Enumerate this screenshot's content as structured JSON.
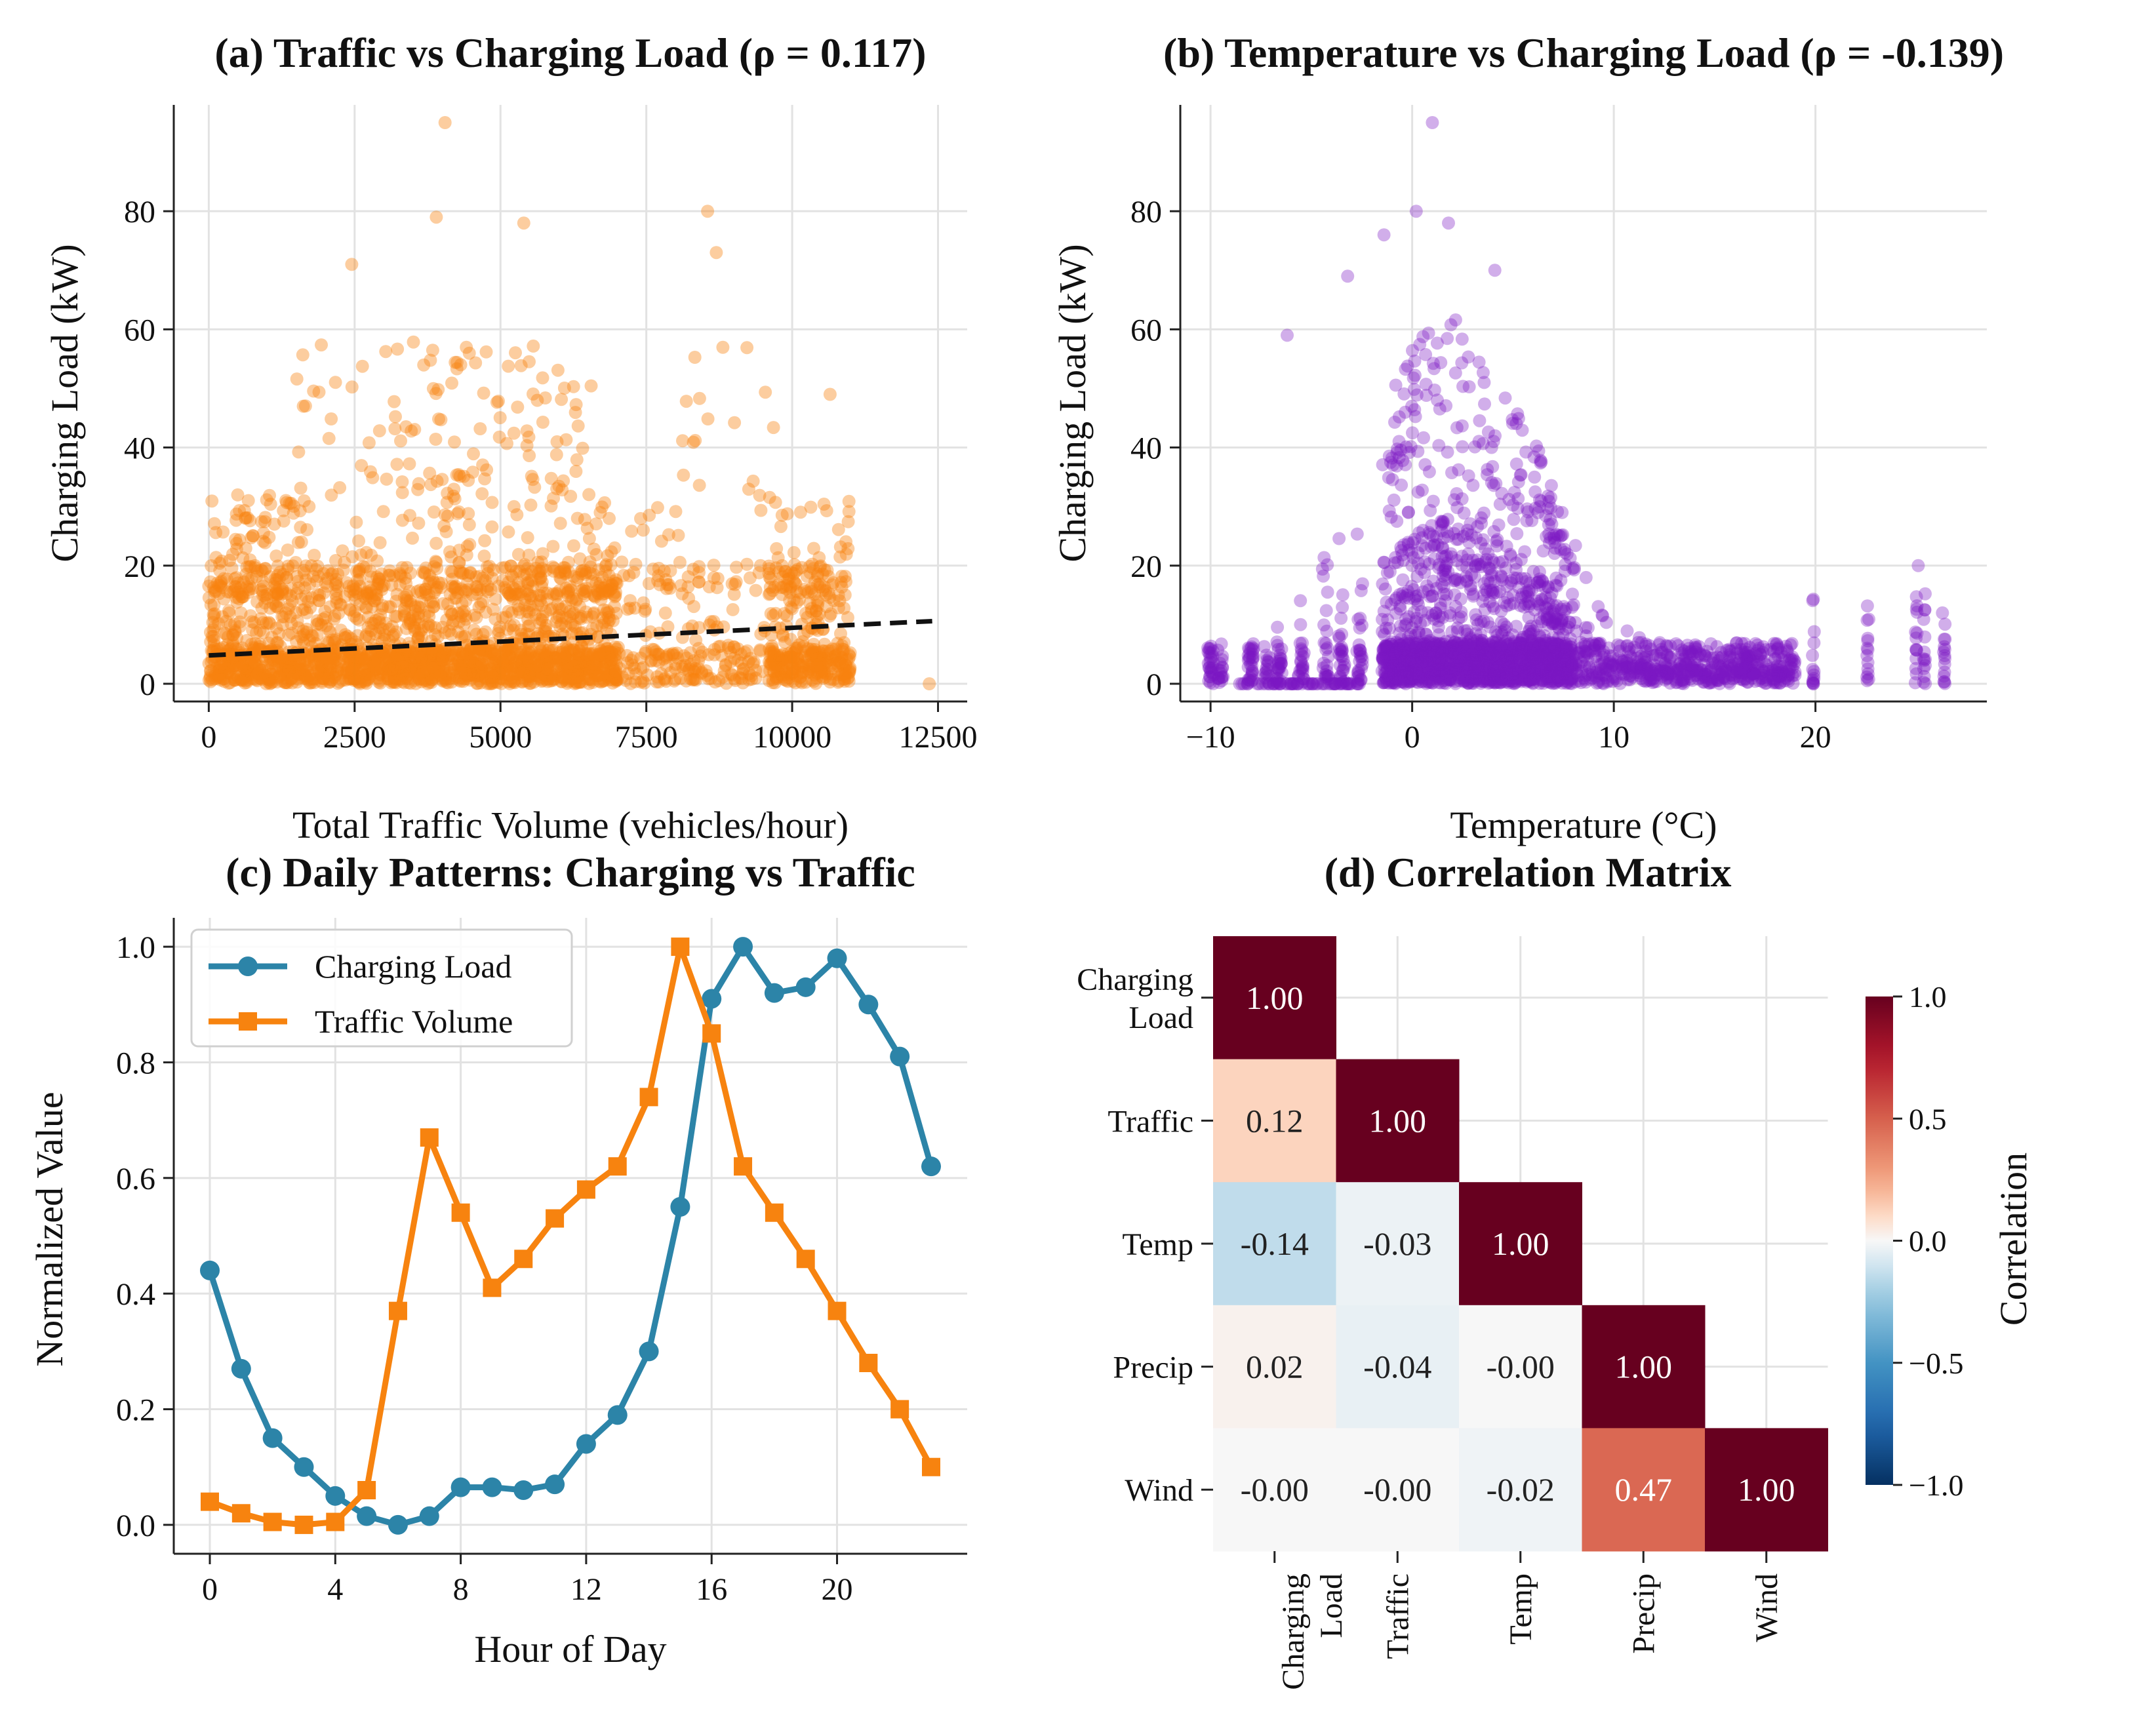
{
  "colors": {
    "orange": "#f7830f",
    "purple": "#7b16c3",
    "blue": "#2c84a8",
    "heat_pos": "#67001f",
    "heat_neg": "#053061"
  },
  "charts": {
    "a": {
      "type": "scatter",
      "title": "(a) Traffic vs Charging Load (ρ = 0.117)",
      "xlabel": "Total Traffic Volume (vehicles/hour)",
      "ylabel": "Charging Load (kW)",
      "xlim": [
        -600,
        13000
      ],
      "ylim": [
        -3,
        98
      ],
      "xticks": [
        0,
        2500,
        5000,
        7500,
        10000,
        12500
      ],
      "xtick_labels": [
        "0",
        "2500",
        "5000",
        "7500",
        "10000",
        "12500"
      ],
      "yticks": [
        0,
        20,
        40,
        60,
        80
      ],
      "ytick_labels": [
        "0",
        "20",
        "40",
        "60",
        "80"
      ],
      "trend_line": {
        "x": [
          0,
          12400
        ],
        "y": [
          4.8,
          10.6
        ]
      },
      "outliers": [
        [
          4050,
          95
        ],
        [
          8550,
          80
        ],
        [
          8700,
          73
        ],
        [
          5400,
          78
        ],
        [
          3900,
          79
        ],
        [
          2450,
          71
        ],
        [
          12350,
          0
        ],
        [
          10650,
          49
        ]
      ]
    },
    "b": {
      "type": "scatter",
      "title": "(b) Temperature vs Charging Load (ρ = -0.139)",
      "xlabel": "Temperature (°C)",
      "ylabel": "Charging Load (kW)",
      "xlim": [
        -11.5,
        28.5
      ],
      "ylim": [
        -3,
        98
      ],
      "xticks": [
        -10,
        0,
        10,
        20
      ],
      "xtick_labels": [
        "−10",
        "0",
        "10",
        "20"
      ],
      "yticks": [
        0,
        20,
        40,
        60,
        80
      ],
      "ytick_labels": [
        "0",
        "20",
        "40",
        "60",
        "80"
      ],
      "outliers": [
        [
          1.0,
          95
        ],
        [
          0.2,
          80
        ],
        [
          1.8,
          78
        ],
        [
          -1.4,
          76
        ],
        [
          -3.2,
          69
        ],
        [
          4.1,
          70
        ],
        [
          -6.2,
          59
        ],
        [
          25.1,
          20
        ],
        [
          26.3,
          12
        ]
      ]
    },
    "c": {
      "type": "line",
      "title": "(c) Daily Patterns: Charging vs Traffic",
      "xlabel": "Hour of Day",
      "ylabel": "Normalized Value",
      "xlim": [
        -1.15,
        24.15
      ],
      "ylim": [
        -0.05,
        1.05
      ],
      "xticks": [
        0,
        4,
        8,
        12,
        16,
        20
      ],
      "xtick_labels": [
        "0",
        "4",
        "8",
        "12",
        "16",
        "20"
      ],
      "yticks": [
        0.0,
        0.2,
        0.4,
        0.6,
        0.8,
        1.0
      ],
      "ytick_labels": [
        "0.0",
        "0.2",
        "0.4",
        "0.6",
        "0.8",
        "1.0"
      ],
      "x": [
        0,
        1,
        2,
        3,
        4,
        5,
        6,
        7,
        8,
        9,
        10,
        11,
        12,
        13,
        14,
        15,
        16,
        17,
        18,
        19,
        20,
        21,
        22,
        23
      ],
      "series": [
        {
          "name": "Charging Load",
          "marker": "circle",
          "values": [
            0.44,
            0.27,
            0.15,
            0.1,
            0.05,
            0.015,
            0.0,
            0.015,
            0.065,
            0.065,
            0.06,
            0.07,
            0.14,
            0.19,
            0.3,
            0.55,
            0.91,
            1.0,
            0.92,
            0.93,
            0.98,
            0.9,
            0.81,
            0.62
          ]
        },
        {
          "name": "Traffic Volume",
          "marker": "square",
          "values": [
            0.04,
            0.02,
            0.005,
            0.0,
            0.005,
            0.06,
            0.37,
            0.67,
            0.54,
            0.41,
            0.46,
            0.53,
            0.58,
            0.62,
            0.74,
            1.0,
            0.85,
            0.62,
            0.54,
            0.46,
            0.37,
            0.28,
            0.2,
            0.1
          ]
        }
      ]
    },
    "d": {
      "type": "heatmap",
      "title": "(d) Correlation Matrix",
      "row_labels": [
        [
          "Charging",
          "Load"
        ],
        [
          "Traffic"
        ],
        [
          "Temp"
        ],
        [
          "Precip"
        ],
        [
          "Wind"
        ]
      ],
      "col_labels": [
        [
          "Charging",
          "Load"
        ],
        [
          "Traffic"
        ],
        [
          "Temp"
        ],
        [
          "Precip"
        ],
        [
          "Wind"
        ]
      ],
      "values": [
        [
          1.0,
          null,
          null,
          null,
          null
        ],
        [
          0.12,
          1.0,
          null,
          null,
          null
        ],
        [
          -0.14,
          -0.03,
          1.0,
          null,
          null
        ],
        [
          0.02,
          -0.04,
          -0.0,
          1.0,
          null
        ],
        [
          -0.0,
          -0.0,
          -0.02,
          0.47,
          1.0
        ]
      ],
      "labels": [
        [
          "1.00",
          "",
          "",
          "",
          ""
        ],
        [
          "0.12",
          "1.00",
          "",
          "",
          ""
        ],
        [
          "-0.14",
          "-0.03",
          "1.00",
          "",
          ""
        ],
        [
          "0.02",
          "-0.04",
          "-0.00",
          "1.00",
          ""
        ],
        [
          "-0.00",
          "-0.00",
          "-0.02",
          "0.47",
          "1.00"
        ]
      ],
      "colorbar": {
        "label": "Correlation",
        "range": [
          -1.0,
          1.0
        ],
        "ticks": [
          1.0,
          0.5,
          0.0,
          -0.5,
          -1.0
        ],
        "tick_labels": [
          "1.0",
          "0.5",
          "0.0",
          "−0.5",
          "−1.0"
        ]
      }
    }
  }
}
